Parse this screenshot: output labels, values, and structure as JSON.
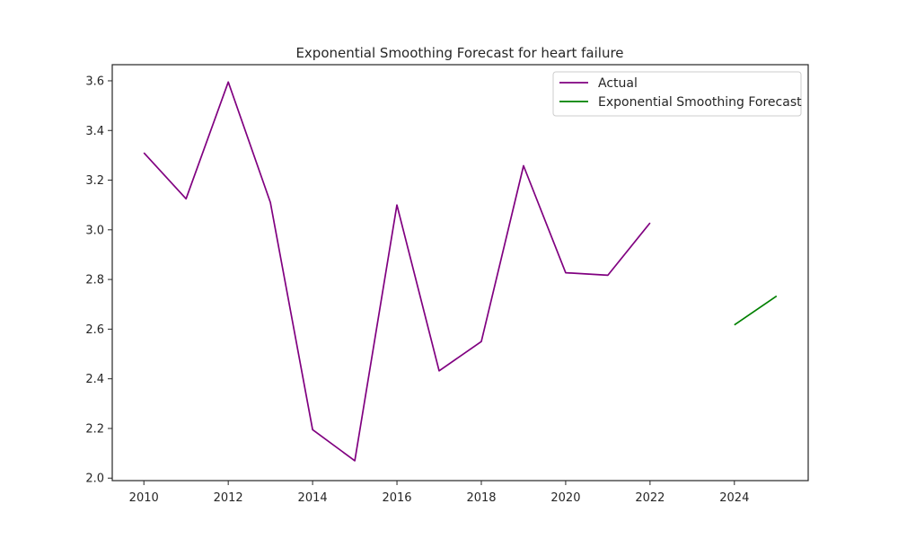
{
  "chart_data": {
    "type": "line",
    "title": "Exponential Smoothing Forecast for heart failure",
    "xlabel": "",
    "ylabel": "",
    "xlim": [
      2009.25,
      2025.75
    ],
    "ylim": [
      1.99,
      3.665
    ],
    "xticks": [
      2010,
      2012,
      2014,
      2016,
      2018,
      2020,
      2022,
      2024
    ],
    "xtick_labels": [
      "2010",
      "2012",
      "2014",
      "2016",
      "2018",
      "2020",
      "2022",
      "2024"
    ],
    "yticks": [
      2.0,
      2.2,
      2.4,
      2.6,
      2.8,
      3.0,
      3.2,
      3.4,
      3.6
    ],
    "ytick_labels": [
      "2.0",
      "2.2",
      "2.4",
      "2.6",
      "2.8",
      "3.0",
      "3.2",
      "3.4",
      "3.6"
    ],
    "grid": false,
    "legend_position": "top-right",
    "series": [
      {
        "name": "Actual",
        "color": "#800080",
        "x": [
          2010,
          2011,
          2012,
          2013,
          2014,
          2015,
          2016,
          2017,
          2018,
          2019,
          2020,
          2021,
          2022
        ],
        "y": [
          3.31,
          3.125,
          3.595,
          3.11,
          2.195,
          2.07,
          3.1,
          2.432,
          2.55,
          3.258,
          2.827,
          2.817,
          3.028
        ]
      },
      {
        "name": "Exponential Smoothing Forecast",
        "color": "#008000",
        "x": [
          2024,
          2025
        ],
        "y": [
          2.617,
          2.733
        ]
      }
    ]
  }
}
